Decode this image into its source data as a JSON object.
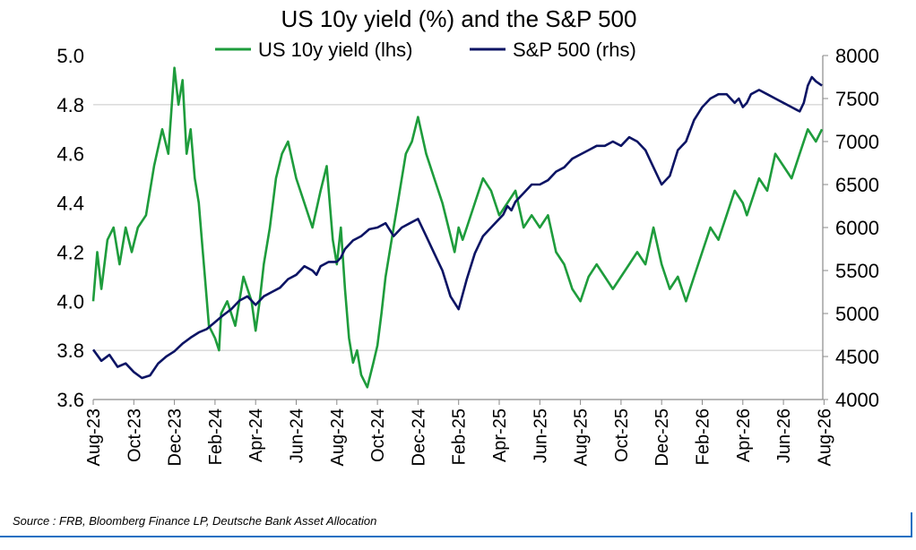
{
  "chart_data": {
    "type": "line",
    "title": "US 10y yield (%) and the S&P 500",
    "legend_position": "top-center",
    "grid": "horizontal reference lines at 3.8 and 4.8 (lhs)",
    "x_tick_labels": [
      "Aug-23",
      "Oct-23",
      "Dec-23",
      "Feb-24",
      "Apr-24",
      "Jun-24",
      "Aug-24",
      "Oct-24",
      "Dec-24",
      "Feb-25",
      "Apr-25",
      "Jun-25",
      "Aug-25",
      "Oct-25",
      "Dec-25",
      "Feb-26",
      "Apr-26",
      "Jun-26",
      "Aug-26"
    ],
    "y_left": {
      "min": 3.6,
      "max": 5.0,
      "ticks": [
        "3.6",
        "3.8",
        "4.0",
        "4.2",
        "4.4",
        "4.6",
        "4.8",
        "5.0"
      ]
    },
    "y_right": {
      "min": 4000,
      "max": 8000,
      "ticks": [
        "4000",
        "4500",
        "5000",
        "5500",
        "6000",
        "6500",
        "7000",
        "7500",
        "8000"
      ]
    },
    "series": [
      {
        "name": "US 10y yield (lhs)",
        "axis": "left",
        "color": "#1e9c3c",
        "x": [
          0,
          0.1,
          0.2,
          0.35,
          0.5,
          0.65,
          0.8,
          0.95,
          1.1,
          1.3,
          1.5,
          1.7,
          1.85,
          2.0,
          2.1,
          2.2,
          2.3,
          2.4,
          2.5,
          2.6,
          2.7,
          2.75,
          2.85,
          3.0,
          3.1,
          3.15,
          3.3,
          3.5,
          3.7,
          3.9,
          4.0,
          4.1,
          4.2,
          4.35,
          4.5,
          4.65,
          4.8,
          5.0,
          5.2,
          5.4,
          5.6,
          5.75,
          5.9,
          6.0,
          6.1,
          6.2,
          6.3,
          6.4,
          6.5,
          6.6,
          6.75,
          6.9,
          7.0,
          7.1,
          7.2,
          7.3,
          7.4,
          7.5,
          7.6,
          7.7,
          7.85,
          8.0,
          8.2,
          8.4,
          8.6,
          8.75,
          8.9,
          9.0,
          9.1,
          9.2,
          9.4,
          9.6,
          9.8,
          10.0,
          10.2,
          10.4,
          10.6,
          10.8,
          11.0,
          11.2,
          11.4,
          11.6,
          11.8,
          12.0,
          12.2,
          12.4,
          12.6,
          12.8,
          13.0,
          13.2,
          13.4,
          13.6,
          13.8,
          14.0,
          14.2,
          14.4,
          14.6,
          14.8,
          15.0,
          15.2,
          15.4,
          15.6,
          15.8,
          16.0,
          16.1,
          16.2,
          16.4,
          16.6,
          16.8,
          17.0,
          17.2,
          17.4,
          17.6,
          17.8,
          17.95
        ],
        "values": [
          4.0,
          4.2,
          4.05,
          4.25,
          4.3,
          4.15,
          4.3,
          4.2,
          4.3,
          4.35,
          4.55,
          4.7,
          4.6,
          4.95,
          4.8,
          4.9,
          4.6,
          4.7,
          4.5,
          4.4,
          4.2,
          4.1,
          3.9,
          3.85,
          3.8,
          3.95,
          4.0,
          3.9,
          4.1,
          4.0,
          3.88,
          4.0,
          4.15,
          4.3,
          4.5,
          4.6,
          4.65,
          4.5,
          4.4,
          4.3,
          4.45,
          4.55,
          4.25,
          4.15,
          4.3,
          4.05,
          3.85,
          3.75,
          3.8,
          3.7,
          3.65,
          3.75,
          3.82,
          3.95,
          4.1,
          4.2,
          4.3,
          4.4,
          4.5,
          4.6,
          4.65,
          4.75,
          4.6,
          4.5,
          4.4,
          4.3,
          4.2,
          4.3,
          4.25,
          4.3,
          4.4,
          4.5,
          4.45,
          4.35,
          4.4,
          4.45,
          4.3,
          4.35,
          4.3,
          4.35,
          4.2,
          4.15,
          4.05,
          4.0,
          4.1,
          4.15,
          4.1,
          4.05,
          4.1,
          4.15,
          4.2,
          4.15,
          4.3,
          4.15,
          4.05,
          4.1,
          4.0,
          4.1,
          4.2,
          4.3,
          4.25,
          4.35,
          4.45,
          4.4,
          4.35,
          4.4,
          4.5,
          4.45,
          4.6,
          4.55,
          4.5,
          4.6,
          4.7,
          4.65,
          4.7
        ]
      },
      {
        "name": "S&P 500 (rhs)",
        "axis": "right",
        "color": "#0c1464",
        "x": [
          0,
          0.2,
          0.4,
          0.6,
          0.8,
          1.0,
          1.2,
          1.4,
          1.6,
          1.8,
          2.0,
          2.2,
          2.4,
          2.6,
          2.8,
          3.0,
          3.2,
          3.4,
          3.6,
          3.8,
          4.0,
          4.2,
          4.4,
          4.6,
          4.8,
          5.0,
          5.2,
          5.4,
          5.5,
          5.6,
          5.8,
          6.0,
          6.1,
          6.2,
          6.4,
          6.6,
          6.8,
          7.0,
          7.2,
          7.4,
          7.6,
          7.8,
          8.0,
          8.2,
          8.4,
          8.6,
          8.8,
          9.0,
          9.2,
          9.4,
          9.6,
          9.8,
          10.0,
          10.1,
          10.2,
          10.3,
          10.4,
          10.6,
          10.8,
          11.0,
          11.2,
          11.4,
          11.6,
          11.8,
          12.0,
          12.2,
          12.4,
          12.6,
          12.8,
          13.0,
          13.2,
          13.4,
          13.6,
          13.8,
          14.0,
          14.2,
          14.4,
          14.6,
          14.8,
          15.0,
          15.2,
          15.4,
          15.6,
          15.8,
          15.9,
          16.0,
          16.1,
          16.2,
          16.4,
          16.6,
          16.8,
          17.0,
          17.2,
          17.4,
          17.5,
          17.6,
          17.7,
          17.8,
          17.95
        ],
        "values": [
          4580,
          4450,
          4520,
          4380,
          4420,
          4320,
          4250,
          4280,
          4420,
          4500,
          4560,
          4650,
          4720,
          4780,
          4820,
          4900,
          4980,
          5050,
          5150,
          5200,
          5100,
          5200,
          5250,
          5300,
          5400,
          5450,
          5550,
          5500,
          5450,
          5550,
          5600,
          5600,
          5650,
          5750,
          5850,
          5900,
          5980,
          6000,
          6050,
          5900,
          6000,
          6050,
          6100,
          5900,
          5700,
          5500,
          5200,
          5050,
          5400,
          5700,
          5900,
          6000,
          6100,
          6150,
          6250,
          6200,
          6300,
          6400,
          6500,
          6500,
          6550,
          6650,
          6700,
          6800,
          6850,
          6900,
          6950,
          6950,
          7000,
          6950,
          7050,
          7000,
          6900,
          6700,
          6500,
          6600,
          6900,
          7000,
          7250,
          7400,
          7500,
          7550,
          7550,
          7450,
          7500,
          7400,
          7450,
          7550,
          7600,
          7550,
          7500,
          7450,
          7400,
          7350,
          7450,
          7650,
          7750,
          7700,
          7650
        ]
      }
    ]
  },
  "source": "Source : FRB, Bloomberg Finance LP, Deutsche Bank Asset Allocation"
}
